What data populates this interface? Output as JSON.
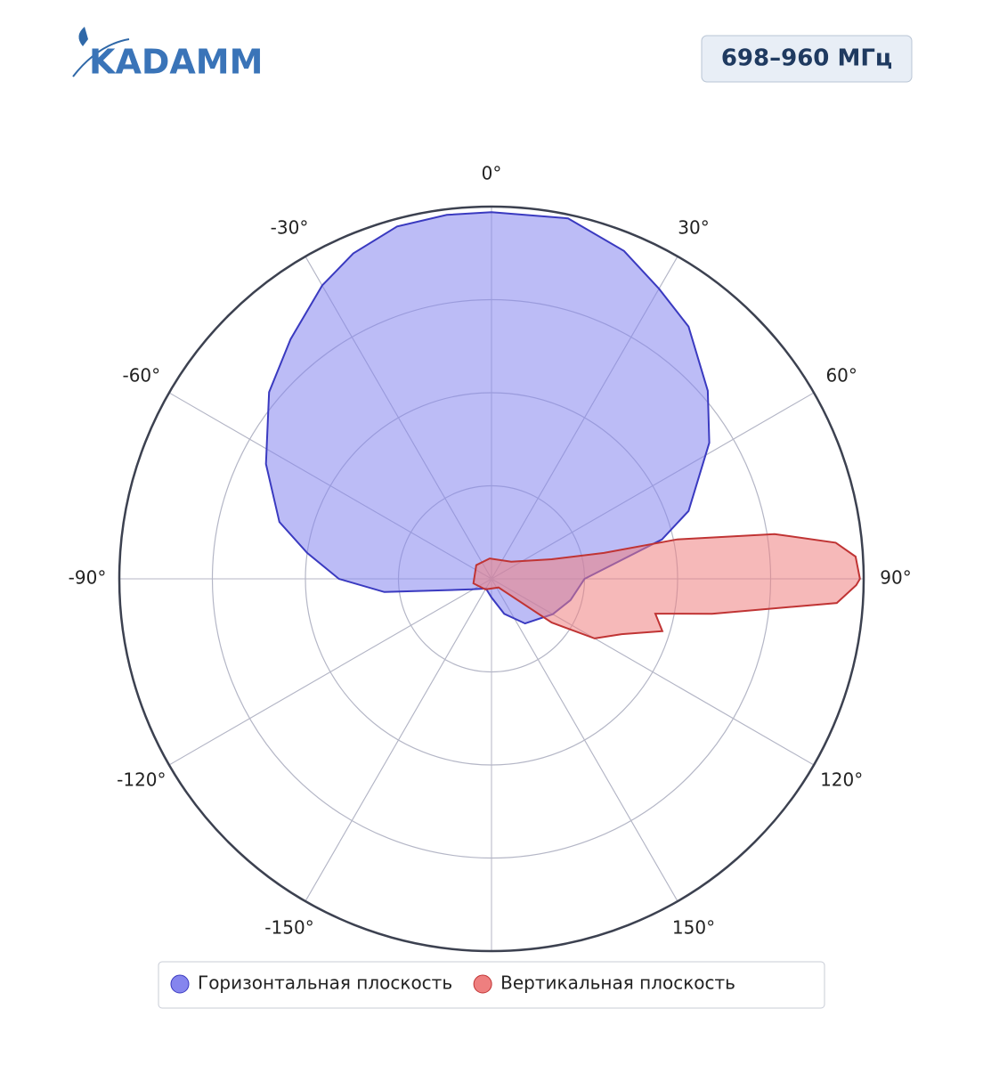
{
  "header": {
    "logo": "KADAMM",
    "badge": "698–960 МГц"
  },
  "chart_data": {
    "type": "polar",
    "rlim": [
      0,
      1
    ],
    "rticks": [
      0.25,
      0.5,
      0.75,
      1
    ],
    "thetaticks": [
      {
        "value": 0,
        "label": "0°"
      },
      {
        "value": 30,
        "label": "30°"
      },
      {
        "value": 60,
        "label": "60°"
      },
      {
        "value": 90,
        "label": "90°"
      },
      {
        "value": 120,
        "label": "120°"
      },
      {
        "value": 150,
        "label": "150°"
      },
      {
        "value": -150,
        "label": "-150°"
      },
      {
        "value": -120,
        "label": "-120°"
      },
      {
        "value": -90,
        "label": "-90°"
      },
      {
        "value": -60,
        "label": "-60°"
      },
      {
        "value": -30,
        "label": "-30°"
      }
    ],
    "grid": true,
    "legend": "bottom",
    "series": [
      {
        "name": "Горизонтальная плоскость",
        "color": "#8585ee",
        "line_color": "#3a3ac0",
        "theta": [
          0,
          12,
          22,
          30,
          38,
          49,
          58,
          71,
          77,
          90,
          105,
          120,
          143,
          160,
          180,
          -150,
          -118,
          -97,
          -90,
          -82,
          -75,
          -63,
          -50,
          -40,
          -30,
          -23,
          -15,
          -7
        ],
        "r": [
          0.985,
          0.99,
          0.95,
          0.9,
          0.86,
          0.77,
          0.69,
          0.56,
          0.47,
          0.25,
          0.22,
          0.19,
          0.15,
          0.1,
          0.05,
          0.03,
          0.06,
          0.29,
          0.41,
          0.5,
          0.59,
          0.68,
          0.78,
          0.84,
          0.91,
          0.95,
          0.98,
          0.985
        ]
      },
      {
        "name": "Вертикальная плоскость",
        "color": "#ee7f7f",
        "line_color": "#c03434",
        "theta": [
          -5,
          -48,
          -104,
          -150,
          141,
          126,
          120,
          113,
          107,
          102,
          99,
          94,
          91,
          90,
          86.5,
          84,
          81,
          78,
          77,
          72,
          49
        ],
        "r": [
          0.055,
          0.055,
          0.05,
          0.033,
          0.03,
          0.2,
          0.32,
          0.38,
          0.48,
          0.45,
          0.6,
          0.93,
          0.98,
          0.99,
          0.98,
          0.93,
          0.77,
          0.51,
          0.31,
          0.17,
          0.07
        ]
      }
    ]
  }
}
